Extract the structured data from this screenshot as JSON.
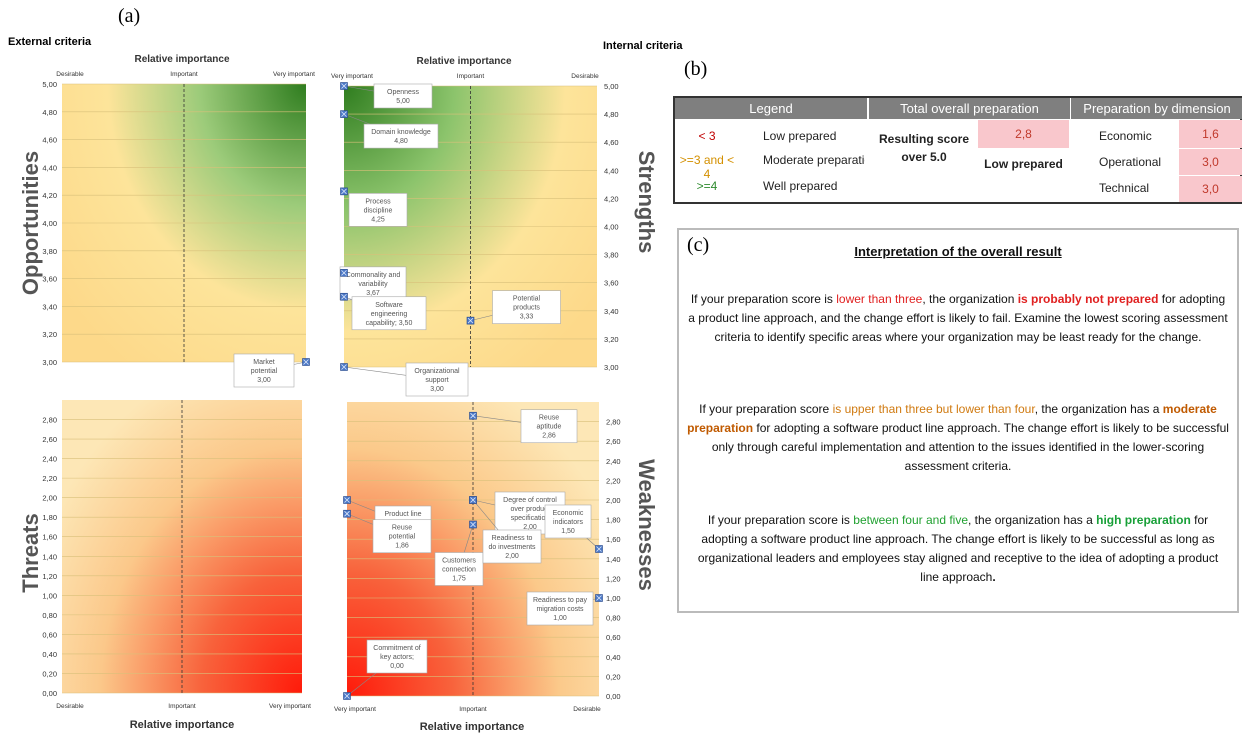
{
  "panels": {
    "a": "(a)",
    "b": "(b)",
    "c": "(c)"
  },
  "criteria": {
    "external": "External criteria",
    "internal": "Internal criteria"
  },
  "axes": {
    "relative_importance": "Relative importance",
    "desirable": "Desirable",
    "important": "Important",
    "very_important": "Very important"
  },
  "quadrants": {
    "opportunities": "Opportunities",
    "strengths": "Strengths",
    "threats": "Threats",
    "weaknesses": "Weaknesses"
  },
  "chart_data": [
    {
      "type": "scatter",
      "name": "Opportunities",
      "xlabel": "Relative importance",
      "x_categories": [
        "Desirable",
        "Important",
        "Very important"
      ],
      "ylim": [
        3.0,
        5.0
      ],
      "yticks": [
        "5,00",
        "4,80",
        "4,60",
        "4,40",
        "4,20",
        "4,00",
        "3,80",
        "3,60",
        "3,40",
        "3,20",
        "3,00"
      ],
      "points": [
        {
          "label": "Market potential",
          "value_text": "3,00",
          "x": "Very important",
          "y": 3.0
        }
      ]
    },
    {
      "type": "scatter",
      "name": "Strengths",
      "xlabel": "Relative importance",
      "x_categories": [
        "Very important",
        "Important",
        "Desirable"
      ],
      "ylim": [
        3.0,
        5.0
      ],
      "yticks": [
        "5,00",
        "4,80",
        "4,60",
        "4,40",
        "4,20",
        "4,00",
        "3,80",
        "3,60",
        "3,40",
        "3,20",
        "3,00"
      ],
      "points": [
        {
          "label": "Openness",
          "value_text": "5,00",
          "x": "Very important",
          "y": 5.0
        },
        {
          "label": "Domain knowledge",
          "value_text": "4,80",
          "x": "Very important",
          "y": 4.8
        },
        {
          "label": "Process discipline",
          "value_text": "4,25",
          "x": "Very important",
          "y": 4.25
        },
        {
          "label": "Commonality and variability",
          "value_text": "3,67",
          "x": "Very important",
          "y": 3.67
        },
        {
          "label": "Software engineering capability; 3,50",
          "value_text": "",
          "x": "Very important",
          "y": 3.5
        },
        {
          "label": "Organizational support",
          "value_text": "3,00",
          "x": "Very important",
          "y": 3.0
        },
        {
          "label": "Potential products",
          "value_text": "3,33",
          "x": "Important",
          "y": 3.33
        }
      ]
    },
    {
      "type": "scatter",
      "name": "Threats",
      "xlabel": "Relative importance",
      "x_categories": [
        "Desirable",
        "Important",
        "Very important"
      ],
      "ylim": [
        0.0,
        3.0
      ],
      "yticks": [
        "2,80",
        "2,60",
        "2,40",
        "2,20",
        "2,00",
        "1,80",
        "1,60",
        "1,40",
        "1,20",
        "1,00",
        "0,80",
        "0,60",
        "0,40",
        "0,20",
        "0,00"
      ],
      "points": []
    },
    {
      "type": "scatter",
      "name": "Weaknesses",
      "xlabel": "Relative importance",
      "x_categories": [
        "Very important",
        "Important",
        "Desirable"
      ],
      "ylim": [
        0.0,
        3.0
      ],
      "yticks": [
        "2,80",
        "2,60",
        "2,40",
        "2,20",
        "2,00",
        "1,80",
        "1,60",
        "1,40",
        "1,20",
        "1,00",
        "0,80",
        "0,60",
        "0,40",
        "0,20",
        "0,00"
      ],
      "points": [
        {
          "label": "Reuse aptitude",
          "value_text": "2,86",
          "x": "Important",
          "y": 2.86
        },
        {
          "label": "Degree of control over product specification",
          "value_text": "2,00",
          "x": "Important",
          "y": 2.0
        },
        {
          "label": "Product line awareness",
          "value_text": "2,00",
          "x": "Very important",
          "y": 2.0
        },
        {
          "label": "Reuse potential",
          "value_text": "1,86",
          "x": "Very important",
          "y": 1.86
        },
        {
          "label": "Customers connection",
          "value_text": "1,75",
          "x": "Important",
          "y": 1.75
        },
        {
          "label": "Readiness to do investments",
          "value_text": "2,00",
          "x": "Important",
          "y": 2.0
        },
        {
          "label": "Economic indicators",
          "value_text": "1,50",
          "x": "Desirable",
          "y": 1.5
        },
        {
          "label": "Readiness to pay migration costs",
          "value_text": "1,00",
          "x": "Desirable",
          "y": 1.0
        },
        {
          "label": "Commitment of key actors; 0,00",
          "value_text": "",
          "x": "Very important",
          "y": 0.0
        }
      ]
    }
  ],
  "legend": {
    "headers": {
      "legend": "Legend",
      "total": "Total overall preparation",
      "dimension": "Preparation by dimension"
    },
    "rows": [
      {
        "range": "< 3",
        "label": "Low prepared",
        "color": "#c00000"
      },
      {
        "range": ">=3 and < 4",
        "label": "Moderate preparatio",
        "color": "#d49000"
      },
      {
        "range": ">=4",
        "label": "Well prepared",
        "color": "#2e8b2e"
      }
    ],
    "resulting_score_label": "Resulting score over 5.0",
    "score": "2,8",
    "score_level": "Low prepared",
    "dimensions": [
      {
        "name": "Economic",
        "value": "1,6"
      },
      {
        "name": "Operational",
        "value": "3,0"
      },
      {
        "name": "Technical",
        "value": "3,0"
      }
    ]
  },
  "interpretation": {
    "title": "Interpretation of the overall result",
    "p1": {
      "a": "If your  preparation score is ",
      "b": "lower than three",
      "c": ", the organization ",
      "d": "is probably not prepared",
      "e": " for adopting a product line approach, and the change effort is likely to fail. Examine the lowest scoring assessment criteria to identify specific areas where your organization may be least ready for the change."
    },
    "p2": {
      "a": "If your preparation score ",
      "b": "is upper than three but lower than four",
      "c": ", the organization has a ",
      "d": "moderate preparation",
      "e": " for adopting a software product line approach. The change effort is likely to be successful only through careful implementation and attention to the issues identified in the lower-scoring assessment criteria."
    },
    "p3": {
      "a": "If your preparation score is ",
      "b": "between four and five",
      "c": ", the organization has a ",
      "d": "high preparation",
      "e": " for adopting a software product line approach. The change effort is likely to be successful as long as organizational leaders and employees stay aligned and receptive to the idea of adopting a product line approach",
      "f": "."
    }
  }
}
